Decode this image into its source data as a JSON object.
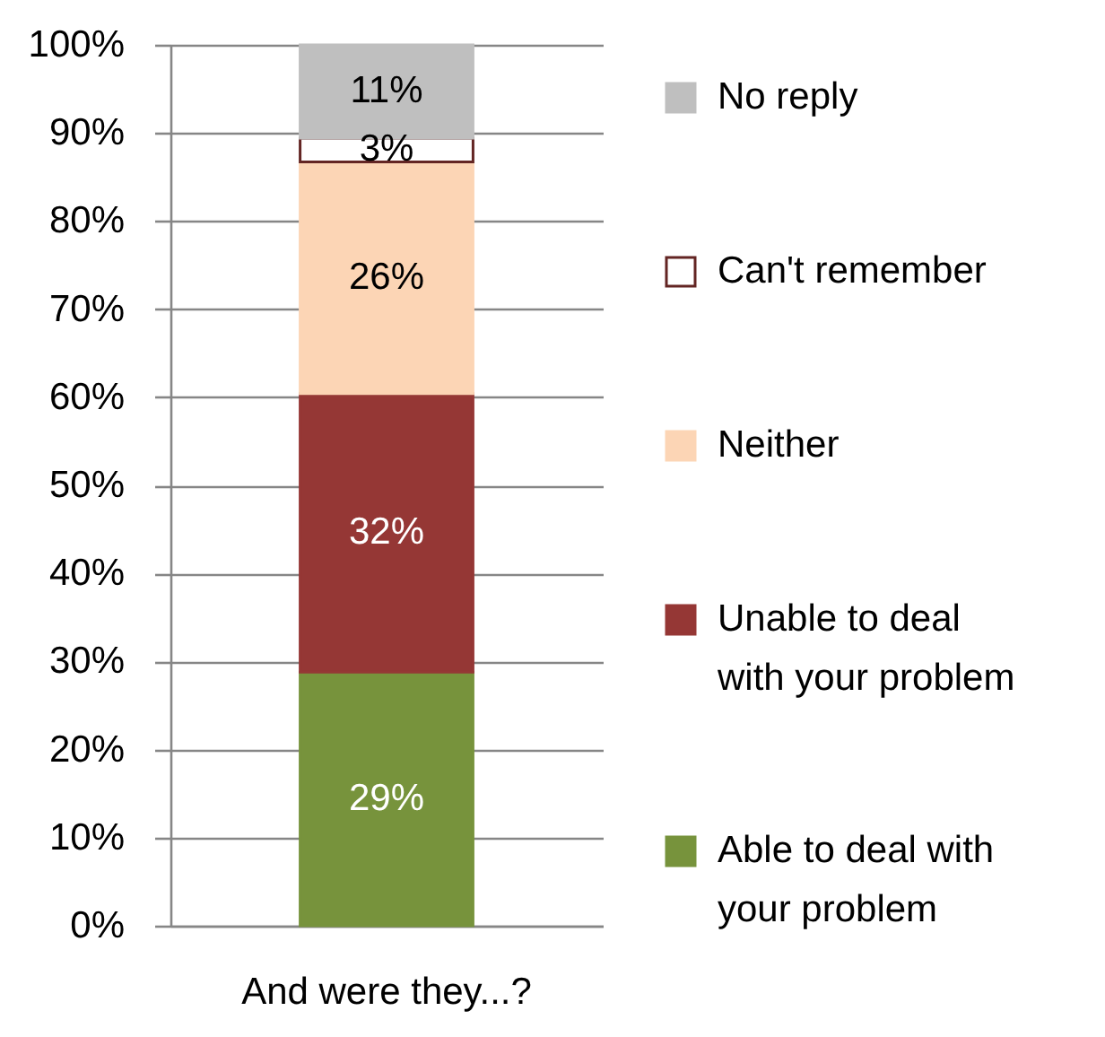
{
  "chart_data": {
    "type": "bar",
    "stacked": true,
    "categories": [
      "And were they...?"
    ],
    "series": [
      {
        "name": "Able to deal with your problem",
        "color": "#77933c",
        "values": [
          28.8
        ],
        "value_labels": [
          "29%"
        ]
      },
      {
        "name": "Unable to deal with your problem",
        "color": "#953735",
        "values": [
          31.6
        ],
        "value_labels": [
          "32%"
        ]
      },
      {
        "name": "Neither",
        "color": "#fcd5b5",
        "values": [
          26.3
        ],
        "value_labels": [
          "26%"
        ]
      },
      {
        "name": "Can't remember",
        "color": "#ffffff",
        "values": [
          2.7
        ],
        "value_labels": [
          "3%"
        ]
      },
      {
        "name": "No reply",
        "color": "#bfbfbf",
        "values": [
          10.6
        ],
        "value_labels": [
          "11%"
        ]
      }
    ],
    "ylim": [
      0,
      100
    ],
    "yticks": [
      {
        "value": 0,
        "label": "0%"
      },
      {
        "value": 10,
        "label": "10%"
      },
      {
        "value": 20,
        "label": "20%"
      },
      {
        "value": 30,
        "label": "30%"
      },
      {
        "value": 40,
        "label": "40%"
      },
      {
        "value": 50,
        "label": "50%"
      },
      {
        "value": 60,
        "label": "60%"
      },
      {
        "value": 70,
        "label": "70%"
      },
      {
        "value": 80,
        "label": "80%"
      },
      {
        "value": 90,
        "label": "90%"
      },
      {
        "value": 100,
        "label": "100%"
      }
    ],
    "grid": "y",
    "legend": "right"
  }
}
